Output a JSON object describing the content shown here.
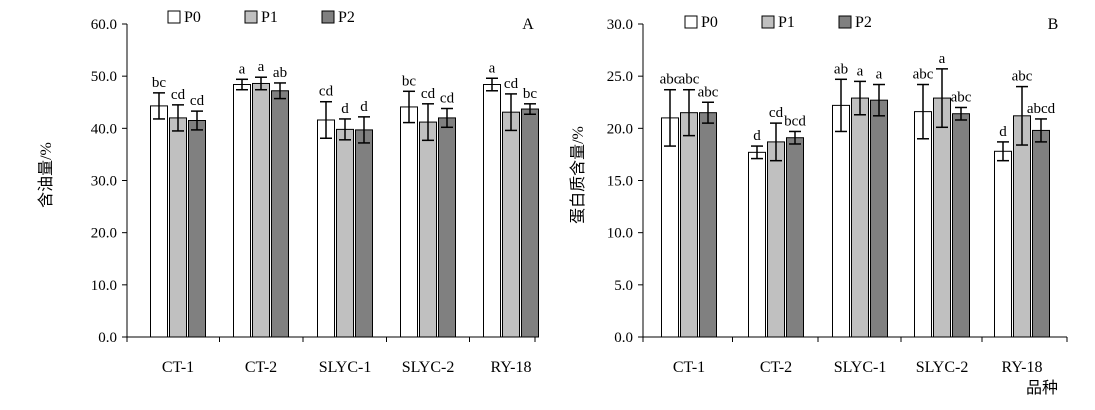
{
  "chart_data": [
    {
      "type": "bar",
      "panel_label": "A",
      "title": "",
      "xlabel": "",
      "ylabel": "含油量/%",
      "ylim": [
        0,
        60
      ],
      "ytick_labels": [
        "0.0",
        "10.0",
        "20.0",
        "30.0",
        "40.0",
        "50.0",
        "60.0"
      ],
      "categories": [
        "CT-1",
        "CT-2",
        "SLYC-1",
        "SLYC-2",
        "RY-18"
      ],
      "legend_placement": "top-center",
      "series": [
        {
          "name": "P0",
          "color": "#ffffff",
          "values": [
            44.3,
            48.4,
            41.6,
            44.1,
            48.4
          ],
          "errors": [
            2.5,
            1.0,
            3.5,
            3.0,
            1.2
          ],
          "labels": [
            "bc",
            "a",
            "cd",
            "bc",
            "a"
          ]
        },
        {
          "name": "P1",
          "color": "#c0c0c0",
          "values": [
            42.0,
            48.6,
            39.8,
            41.2,
            43.1
          ],
          "errors": [
            2.5,
            1.2,
            2.0,
            3.5,
            3.5
          ],
          "labels": [
            "cd",
            "a",
            "d",
            "cd",
            "cd"
          ]
        },
        {
          "name": "P2",
          "color": "#808080",
          "values": [
            41.5,
            47.2,
            39.7,
            42.0,
            43.7
          ],
          "errors": [
            1.8,
            1.5,
            2.5,
            1.8,
            1.0
          ],
          "labels": [
            "cd",
            "ab",
            "d",
            "cd",
            "bc"
          ]
        }
      ]
    },
    {
      "type": "bar",
      "panel_label": "B",
      "title": "",
      "xlabel": "品种",
      "ylabel": "蛋白质含量/%",
      "ylim": [
        0,
        30
      ],
      "ytick_labels": [
        "0.0",
        "5.0",
        "10.0",
        "15.0",
        "20.0",
        "25.0",
        "30.0"
      ],
      "categories": [
        "CT-1",
        "CT-2",
        "SLYC-1",
        "SLYC-2",
        "RY-18"
      ],
      "legend_placement": "top-center",
      "series": [
        {
          "name": "P0",
          "color": "#ffffff",
          "values": [
            21.0,
            17.7,
            22.2,
            21.6,
            17.8
          ],
          "errors": [
            2.7,
            0.6,
            2.5,
            2.6,
            0.9
          ],
          "labels": [
            "abc",
            "d",
            "ab",
            "abc",
            "d"
          ]
        },
        {
          "name": "P1",
          "color": "#c0c0c0",
          "values": [
            21.5,
            18.7,
            22.9,
            22.9,
            21.2
          ],
          "errors": [
            2.2,
            1.8,
            1.6,
            2.8,
            2.8
          ],
          "labels": [
            "abc",
            "cd",
            "a",
            "a",
            "abc"
          ]
        },
        {
          "name": "P2",
          "color": "#808080",
          "values": [
            21.5,
            19.1,
            22.7,
            21.4,
            19.8
          ],
          "errors": [
            1.0,
            0.6,
            1.5,
            0.6,
            1.1
          ],
          "labels": [
            "abc",
            "bcd",
            "a",
            "abc",
            "abcd"
          ]
        }
      ]
    }
  ]
}
